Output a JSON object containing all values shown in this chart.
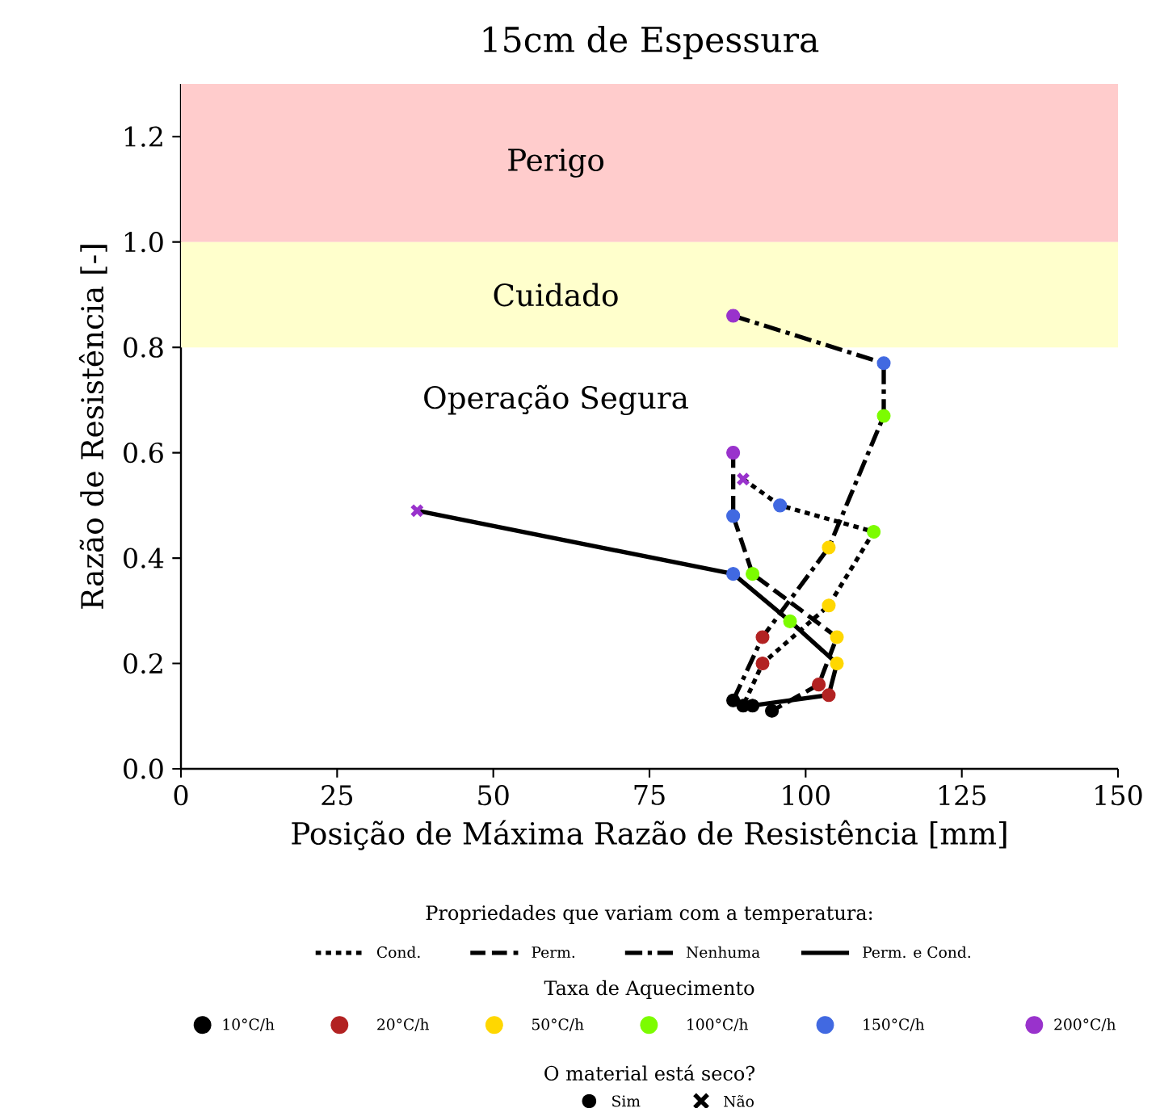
{
  "chart_data": {
    "type": "line",
    "title": "15cm de Espessura",
    "xlabel": "Posição de Máxima Razão de Resistência [mm]",
    "ylabel": "Razão de Resistência [-]",
    "xlim": [
      0,
      150
    ],
    "xticks": [
      0,
      25,
      50,
      75,
      100,
      125,
      150
    ],
    "ylim": [
      0,
      1.3
    ],
    "yticks": [
      {
        "value": 0,
        "label": "0.0"
      },
      0.2,
      0.4,
      0.6,
      0.8,
      {
        "value": 1.0,
        "label": "1.0"
      },
      1.2
    ],
    "bands": [
      {
        "axis": "y",
        "from": 1.0,
        "to": 1.3,
        "label": "Perigo",
        "color": "#ffcccc"
      },
      {
        "axis": "y",
        "from": 0.8,
        "to": 1.0,
        "label": "Cuidado",
        "color": "#ffffcc"
      }
    ],
    "annotations": [
      "Operação Segura",
      "Taxa de Aquecimento",
      "O material está seco?",
      "Sim",
      "Não"
    ],
    "legend": "bottom",
    "legend_title": "Propriedades que variam com a temperatura:",
    "series": [
      {
        "name": "Cond.",
        "color": "#000000",
        "line_style": "dotted",
        "marker": "none",
        "x": [
          90.0,
          95.9,
          110.9,
          103.7,
          93.1,
          90.0
        ],
        "values": [
          0.55,
          0.5,
          0.45,
          0.31,
          0.2,
          0.12
        ]
      },
      {
        "name": "Perm.",
        "color": "#000000",
        "line_style": "dashed",
        "marker": "none",
        "x": [
          88.4,
          88.4,
          91.5,
          105.0,
          102.1,
          94.6
        ],
        "values": [
          0.6,
          0.48,
          0.37,
          0.25,
          0.16,
          0.11
        ]
      },
      {
        "name": "Nenhuma",
        "color": "#000000",
        "line_style": "dashdot",
        "marker": "none",
        "x": [
          88.4,
          112.5,
          112.5,
          103.7,
          93.1,
          88.4
        ],
        "values": [
          0.86,
          0.77,
          0.67,
          0.42,
          0.25,
          0.13
        ]
      },
      {
        "name": "Perm. e Cond.",
        "color": "#000000",
        "line_style": "solid",
        "marker": "none",
        "x": [
          37.8,
          88.4,
          97.5,
          105.0,
          103.7,
          91.5
        ],
        "values": [
          0.49,
          0.37,
          0.28,
          0.2,
          0.14,
          0.12
        ]
      },
      {
        "name": "10°C/h",
        "type": "scatter",
        "color": "#000000",
        "marker": "circle",
        "x": [
          90.0,
          94.6,
          88.4,
          91.5
        ],
        "values": [
          0.12,
          0.11,
          0.13,
          0.12
        ]
      },
      {
        "name": "20°C/h",
        "type": "scatter",
        "color": "#b22222",
        "marker": "circle",
        "x": [
          93.1,
          102.1,
          93.1,
          103.7
        ],
        "values": [
          0.2,
          0.16,
          0.25,
          0.14
        ]
      },
      {
        "name": "50°C/h",
        "type": "scatter",
        "color": "#ffd700",
        "marker": "circle",
        "x": [
          103.7,
          105.0,
          103.7,
          105.0
        ],
        "values": [
          0.31,
          0.25,
          0.42,
          0.2
        ]
      },
      {
        "name": "100°C/h",
        "type": "scatter",
        "color": "#7cfc00",
        "marker": "circle",
        "x": [
          110.9,
          91.5,
          112.5,
          97.5
        ],
        "values": [
          0.45,
          0.37,
          0.67,
          0.28
        ]
      },
      {
        "name": "150°C/h",
        "type": "scatter",
        "color": "#4169e1",
        "marker": "circle",
        "x": [
          95.9,
          88.4,
          112.5,
          88.4
        ],
        "values": [
          0.5,
          0.48,
          0.77,
          0.37
        ]
      },
      {
        "name": "200°C/h",
        "type": "scatter",
        "color": "#9932cc",
        "marker": "circle",
        "x": [
          88.4,
          88.4
        ],
        "values": [
          0.6,
          0.86
        ]
      },
      {
        "type": "scatter",
        "color": "#9932cc",
        "marker": "cross",
        "x": [
          90.0,
          37.8
        ],
        "values": [
          0.55,
          0.49
        ]
      }
    ]
  }
}
